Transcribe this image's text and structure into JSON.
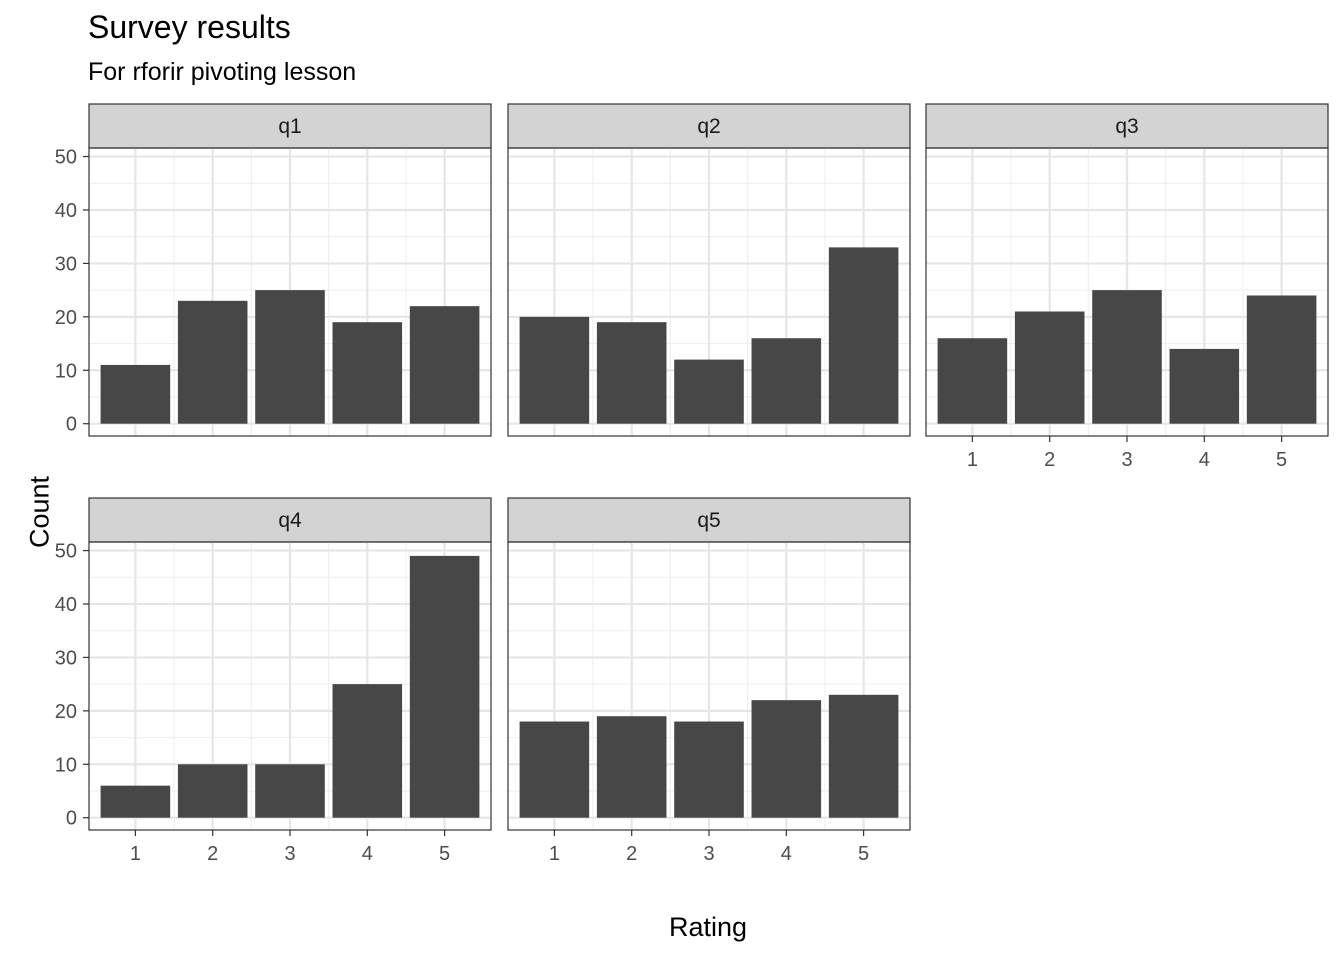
{
  "chart_data": {
    "type": "bar",
    "title": "Survey results",
    "subtitle": "For rforir pivoting lesson",
    "xlabel": "Rating",
    "ylabel": "Count",
    "categories": [
      "1",
      "2",
      "3",
      "4",
      "5"
    ],
    "ylim": [
      0,
      50
    ],
    "y_ticks": [
      "0",
      "10",
      "20",
      "30",
      "40",
      "50"
    ],
    "grid": true,
    "legend": "none",
    "bar_color": "#474747",
    "strip_color": "#d3d3d3",
    "facets": [
      {
        "name": "q1",
        "values": [
          11,
          23,
          25,
          19,
          22
        ]
      },
      {
        "name": "q2",
        "values": [
          20,
          19,
          12,
          16,
          33
        ]
      },
      {
        "name": "q3",
        "values": [
          16,
          21,
          25,
          14,
          24
        ]
      },
      {
        "name": "q4",
        "values": [
          6,
          10,
          10,
          25,
          49
        ]
      },
      {
        "name": "q5",
        "values": [
          18,
          19,
          18,
          22,
          23
        ]
      }
    ]
  }
}
